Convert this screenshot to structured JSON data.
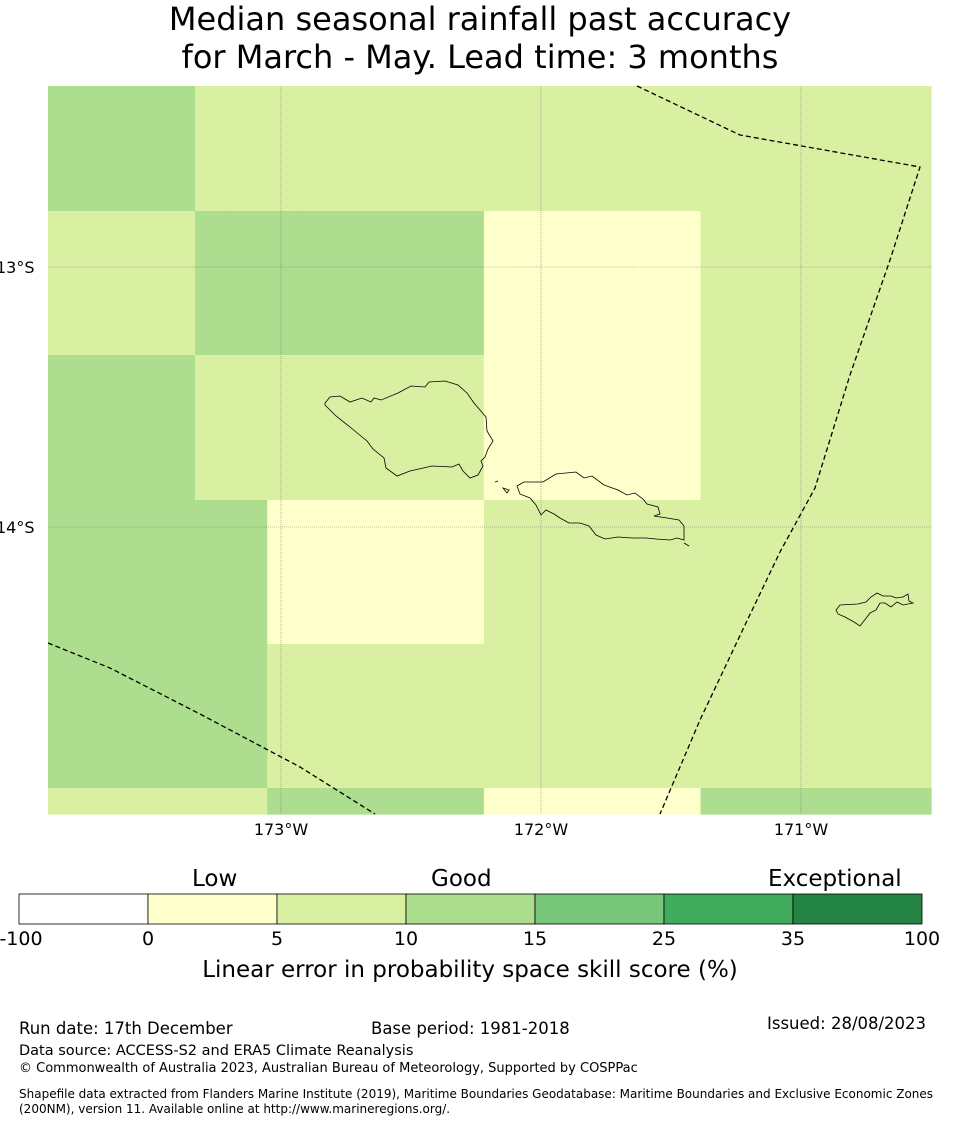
{
  "title": {
    "line1": "Median seasonal rainfall past accuracy",
    "line2": "for March - May. Lead time: 3 months"
  },
  "map": {
    "lat_labels": [
      "13°S",
      "14°S"
    ],
    "lon_labels": [
      "173°W",
      "172°W",
      "171°W"
    ],
    "grid_colors": [
      "#ffffcc",
      "#d9f0a3",
      "#addd8e"
    ],
    "grid_cells": [
      [
        2,
        1,
        1,
        1,
        1,
        1,
        1,
        1,
        1,
        1,
        1,
        1,
        1,
        1,
        1,
        1,
        1,
        1,
        1
      ],
      [
        1,
        2,
        2,
        2,
        2,
        2,
        2,
        2,
        2,
        0,
        0,
        0,
        0,
        0,
        0,
        1,
        1,
        1,
        1
      ],
      [
        2,
        1,
        1,
        1,
        1,
        1,
        1,
        1,
        1,
        0,
        0,
        0,
        0,
        0,
        0,
        1,
        1,
        1,
        1
      ],
      [
        2,
        2,
        2,
        0,
        0,
        0,
        0,
        0,
        0,
        1,
        1,
        1,
        1,
        1,
        1,
        1,
        1,
        1,
        1
      ],
      [
        2,
        2,
        2,
        1,
        1,
        1,
        1,
        1,
        1,
        1,
        1,
        1,
        1,
        1,
        1,
        1,
        1,
        1,
        1
      ],
      [
        1,
        1,
        1,
        2,
        2,
        2,
        2,
        2,
        2,
        0,
        0,
        0,
        0,
        0,
        0,
        2,
        2,
        2,
        2
      ]
    ]
  },
  "colorbar": {
    "categories": [
      "Low",
      "Good",
      "Exceptional"
    ],
    "ticks": [
      "-100",
      "0",
      "5",
      "10",
      "15",
      "25",
      "35",
      "100"
    ],
    "colors": [
      "#ffffff",
      "#ffffcc",
      "#d9f0a3",
      "#addd8e",
      "#78c679",
      "#41ab5d",
      "#238443"
    ],
    "title": "Linear error in probability space skill score (%)"
  },
  "footer": {
    "run_date": "Run date: 17th December",
    "base_period": "Base period: 1981-2018",
    "issued": "Issued: 28/08/2023",
    "data_source": "Data source: ACCESS-S2 and ERA5 Climate Reanalysis",
    "copyright": "© Commonwealth of Australia 2023, Australian Bureau of Meteorology, Supported by COSPPac",
    "shapefile": "Shapefile data extracted from Flanders Marine Institute (2019), Maritime Boundaries Geodatabase: Maritime Boundaries and Exclusive Economic Zones (200NM), version 11. Available online at http://www.marineregions.org/."
  }
}
